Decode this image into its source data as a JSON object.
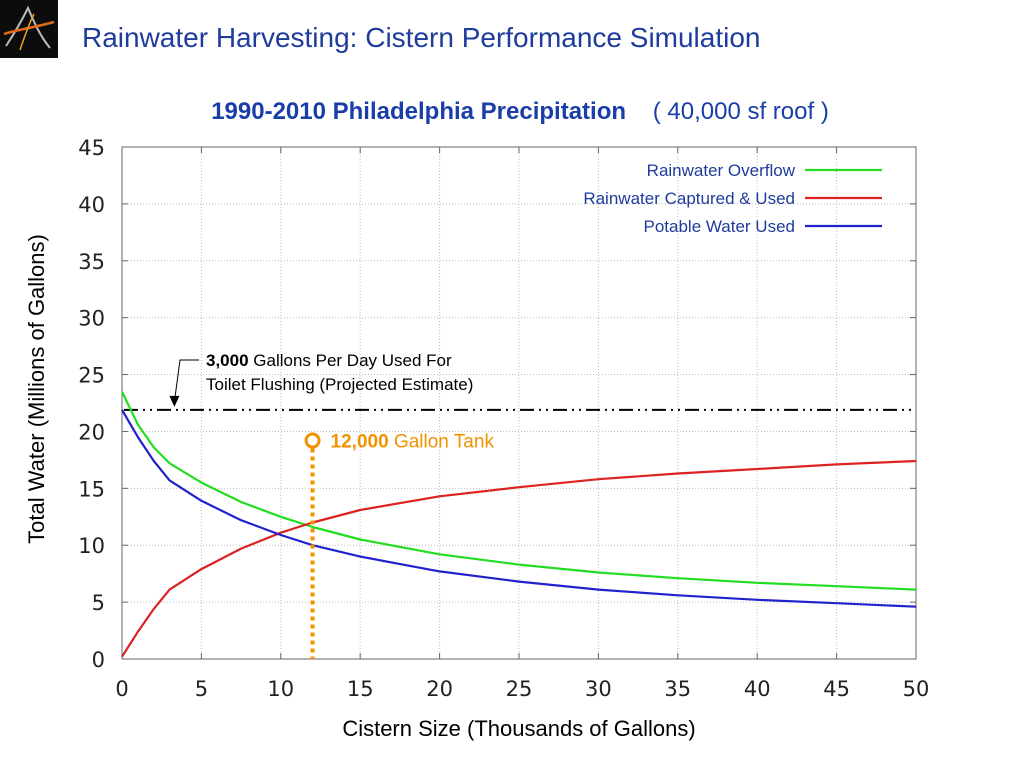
{
  "slide": {
    "title": "Rainwater Harvesting: Cistern Performance Simulation",
    "logo_icon": "stylized-letter-a-logo-icon"
  },
  "chart_data": {
    "type": "line",
    "title": "1990-2010  Philadelphia Precipitation",
    "subtitle": "( 40,000 sf roof )",
    "xlabel": "Cistern Size (Thousands of Gallons)",
    "ylabel": "Total Water (Millions of Gallons)",
    "xlim": [
      0,
      50
    ],
    "ylim": [
      0,
      45
    ],
    "xticks": [
      0,
      5,
      10,
      15,
      20,
      25,
      30,
      35,
      40,
      45,
      50
    ],
    "yticks": [
      0,
      5,
      10,
      15,
      20,
      25,
      30,
      35,
      40,
      45
    ],
    "grid": true,
    "legend_position": "top-right",
    "series": [
      {
        "name": "Rainwater Overflow",
        "color": "#22dd22",
        "x": [
          0,
          1,
          2,
          3,
          5,
          7.5,
          10,
          12,
          15,
          20,
          25,
          30,
          35,
          40,
          45,
          50
        ],
        "y": [
          23.5,
          20.6,
          18.6,
          17.2,
          15.5,
          13.8,
          12.5,
          11.6,
          10.5,
          9.2,
          8.3,
          7.6,
          7.1,
          6.7,
          6.4,
          6.1
        ]
      },
      {
        "name": "Rainwater Captured & Used",
        "color": "#dd2222",
        "x": [
          0,
          1,
          2,
          3,
          5,
          7.5,
          10,
          12,
          15,
          20,
          25,
          30,
          35,
          40,
          45,
          50
        ],
        "y": [
          0.2,
          2.4,
          4.4,
          6.1,
          7.9,
          9.7,
          11.1,
          12.0,
          13.1,
          14.3,
          15.1,
          15.8,
          16.3,
          16.7,
          17.1,
          17.4
        ]
      },
      {
        "name": "Potable Water Used",
        "color": "#2222cc",
        "x": [
          0,
          1,
          2,
          3,
          5,
          7.5,
          10,
          12,
          15,
          20,
          25,
          30,
          35,
          40,
          45,
          50
        ],
        "y": [
          21.9,
          19.5,
          17.4,
          15.7,
          13.9,
          12.2,
          10.9,
          10.0,
          9.0,
          7.7,
          6.8,
          6.1,
          5.6,
          5.2,
          4.9,
          4.6
        ]
      }
    ],
    "reference_line": {
      "y": 21.9,
      "style": "dash-dot",
      "color": "#000000",
      "annotation_bold": "3,000",
      "annotation_line1": " Gallons Per Day Used For",
      "annotation_line2": "Toilet Flushing (Projected Estimate)"
    },
    "marker": {
      "x": 12,
      "y": 19.2,
      "color": "#f39200",
      "label_bold": "12,000",
      "label_rest": " Gallon Tank"
    }
  }
}
